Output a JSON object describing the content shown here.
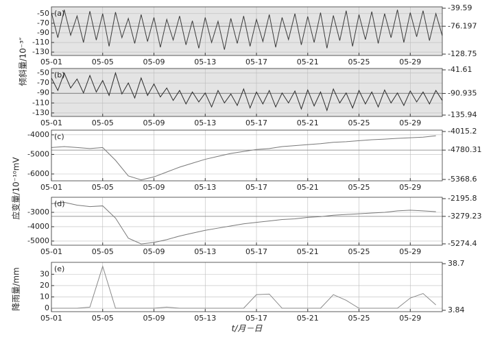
{
  "y_axis_titles": [
    "倾斜量/10⁻³″",
    "应变量/10⁻¹⁰mV",
    "降雨量/mm"
  ],
  "x_axis_title": "t/月－日",
  "chart_data": [
    {
      "type": "line",
      "label": "(a)",
      "background": "#e4e4e4",
      "grid": true,
      "color": "#3a3a3a",
      "x": [
        1,
        1.5,
        2,
        2.5,
        3,
        3.5,
        4,
        4.5,
        5,
        5.5,
        6,
        6.5,
        7,
        7.5,
        8,
        8.5,
        9,
        9.5,
        10,
        10.5,
        11,
        11.5,
        12,
        12.5,
        13,
        13.5,
        14,
        14.5,
        15,
        15.5,
        16,
        16.5,
        17,
        17.5,
        18,
        18.5,
        19,
        19.5,
        20,
        20.5,
        21,
        21.5,
        22,
        22.5,
        23,
        23.5,
        24,
        24.5,
        25,
        25.5,
        26,
        26.5,
        27,
        27.5,
        28,
        28.5,
        29,
        29.5,
        30,
        30.5,
        31,
        31.5
      ],
      "values": [
        -48,
        -100,
        -42,
        -95,
        -55,
        -110,
        -45,
        -105,
        -50,
        -118,
        -47,
        -100,
        -60,
        -112,
        -52,
        -108,
        -58,
        -120,
        -62,
        -105,
        -55,
        -115,
        -65,
        -122,
        -58,
        -110,
        -66,
        -125,
        -60,
        -112,
        -55,
        -118,
        -62,
        -108,
        -52,
        -120,
        -58,
        -104,
        -50,
        -115,
        -56,
        -110,
        -48,
        -122,
        -54,
        -106,
        -44,
        -118,
        -52,
        -104,
        -46,
        -112,
        -50,
        -100,
        -42,
        -110,
        -48,
        -98,
        -44,
        -106,
        -50,
        -96
      ],
      "xlim": [
        1,
        31.5
      ],
      "xticks": [
        {
          "value": 1,
          "label": "05-01"
        },
        {
          "value": 5,
          "label": "05-05"
        },
        {
          "value": 9,
          "label": "05-09"
        },
        {
          "value": 13,
          "label": "05-13"
        },
        {
          "value": 17,
          "label": "05-17"
        },
        {
          "value": 21,
          "label": "05-21"
        },
        {
          "value": 25,
          "label": "05-25"
        },
        {
          "value": 29,
          "label": "05-29"
        }
      ],
      "ylim": [
        -137,
        -36
      ],
      "yticks": [
        -50,
        -70,
        -90,
        -110,
        -130
      ],
      "right_labels": [
        -39.59,
        -76.197,
        -128.75
      ]
    },
    {
      "type": "line",
      "label": "(b)",
      "background": "#e4e4e4",
      "grid": true,
      "color": "#2a2a2a",
      "x": [
        1,
        1.5,
        2,
        2.5,
        3,
        3.5,
        4,
        4.5,
        5,
        5.5,
        6,
        6.5,
        7,
        7.5,
        8,
        8.5,
        9,
        9.5,
        10,
        10.5,
        11,
        11.5,
        12,
        12.5,
        13,
        13.5,
        14,
        14.5,
        15,
        15.5,
        16,
        16.5,
        17,
        17.5,
        18,
        18.5,
        19,
        19.5,
        20,
        20.5,
        21,
        21.5,
        22,
        22.5,
        23,
        23.5,
        24,
        24.5,
        25,
        25.5,
        26,
        26.5,
        27,
        27.5,
        28,
        28.5,
        29,
        29.5,
        30,
        30.5,
        31,
        31.5
      ],
      "values": [
        -60,
        -85,
        -50,
        -80,
        -62,
        -90,
        -55,
        -88,
        -65,
        -95,
        -50,
        -92,
        -70,
        -100,
        -60,
        -95,
        -72,
        -98,
        -80,
        -105,
        -85,
        -112,
        -88,
        -108,
        -90,
        -118,
        -85,
        -110,
        -92,
        -115,
        -82,
        -120,
        -88,
        -112,
        -85,
        -118,
        -90,
        -110,
        -86,
        -122,
        -84,
        -116,
        -88,
        -125,
        -82,
        -110,
        -90,
        -120,
        -85,
        -112,
        -88,
        -118,
        -84,
        -110,
        -90,
        -115,
        -86,
        -108,
        -88,
        -112,
        -85,
        -105
      ],
      "xlim": [
        1,
        31.5
      ],
      "xticks": [
        {
          "value": 1,
          "label": "05-01"
        },
        {
          "value": 5,
          "label": "05-05"
        },
        {
          "value": 9,
          "label": "05-09"
        },
        {
          "value": 13,
          "label": "05-13"
        },
        {
          "value": 17,
          "label": "05-17"
        },
        {
          "value": 21,
          "label": "05-21"
        },
        {
          "value": 25,
          "label": "05-25"
        },
        {
          "value": 29,
          "label": "05-29"
        }
      ],
      "ylim": [
        -137,
        -41
      ],
      "yticks": [
        -50,
        -70,
        -90,
        -110,
        -130
      ],
      "right_labels": [
        -41.61,
        -90.935,
        -135.94
      ]
    },
    {
      "type": "line",
      "label": "(c)",
      "background": "#ffffff",
      "grid": true,
      "color": "#777777",
      "x": [
        1,
        2,
        3,
        4,
        5,
        6,
        7,
        8,
        9,
        10,
        11,
        12,
        13,
        14,
        15,
        16,
        17,
        18,
        19,
        20,
        21,
        22,
        23,
        24,
        25,
        26,
        27,
        28,
        29,
        30,
        31
      ],
      "values": [
        -4650,
        -4600,
        -4650,
        -4700,
        -4650,
        -5300,
        -6100,
        -6300,
        -6150,
        -5900,
        -5650,
        -5450,
        -5250,
        -5100,
        -4950,
        -4850,
        -4750,
        -4700,
        -4600,
        -4550,
        -4500,
        -4450,
        -4380,
        -4350,
        -4300,
        -4250,
        -4220,
        -4180,
        -4150,
        -4120,
        -4050
      ],
      "xlim": [
        1,
        31.5
      ],
      "xticks": [
        {
          "value": 1,
          "label": "05-01"
        },
        {
          "value": 5,
          "label": "05-05"
        },
        {
          "value": 9,
          "label": "05-09"
        },
        {
          "value": 13,
          "label": "05-13"
        },
        {
          "value": 17,
          "label": "05-17"
        },
        {
          "value": 21,
          "label": "05-21"
        },
        {
          "value": 25,
          "label": "05-25"
        },
        {
          "value": 29,
          "label": "05-29"
        }
      ],
      "ylim": [
        -6350,
        -3760
      ],
      "yticks": [
        -4000,
        -5000,
        -6000
      ],
      "right_labels": [
        -4015.2,
        -4780.31,
        -5368.6
      ]
    },
    {
      "type": "line",
      "label": "(d)",
      "background": "#ffffff",
      "grid": true,
      "color": "#777777",
      "x": [
        1,
        2,
        3,
        4,
        5,
        6,
        7,
        8,
        9,
        10,
        11,
        12,
        13,
        14,
        15,
        16,
        17,
        18,
        19,
        20,
        21,
        22,
        23,
        24,
        25,
        26,
        27,
        28,
        29,
        30,
        31
      ],
      "values": [
        -2400,
        -2300,
        -2500,
        -2600,
        -2550,
        -3400,
        -4800,
        -5200,
        -5100,
        -4900,
        -4650,
        -4450,
        -4250,
        -4100,
        -3950,
        -3800,
        -3700,
        -3600,
        -3500,
        -3450,
        -3350,
        -3300,
        -3200,
        -3150,
        -3100,
        -3050,
        -3000,
        -2900,
        -2850,
        -2900,
        -2950
      ],
      "xlim": [
        1,
        31.5
      ],
      "xticks": [
        {
          "value": 1,
          "label": "05-01"
        },
        {
          "value": 5,
          "label": "05-05"
        },
        {
          "value": 9,
          "label": "05-09"
        },
        {
          "value": 13,
          "label": "05-13"
        },
        {
          "value": 17,
          "label": "05-17"
        },
        {
          "value": 21,
          "label": "05-21"
        },
        {
          "value": 25,
          "label": "05-25"
        },
        {
          "value": 29,
          "label": "05-29"
        }
      ],
      "ylim": [
        -5290,
        -1950
      ],
      "yticks": [
        -3000,
        -4000,
        -5000
      ],
      "right_labels": [
        -2195.8,
        -3279.23,
        -5274.4
      ]
    },
    {
      "type": "line",
      "label": "(e)",
      "background": "#ffffff",
      "grid": true,
      "color": "#888888",
      "x": [
        1,
        2,
        3,
        4,
        5,
        6,
        7,
        8,
        9,
        10,
        11,
        12,
        13,
        14,
        15,
        16,
        17,
        18,
        19,
        20,
        21,
        22,
        23,
        24,
        25,
        26,
        27,
        28,
        29,
        30,
        31
      ],
      "values": [
        0,
        0,
        0,
        1,
        37,
        0,
        0,
        0,
        0,
        1,
        0,
        0,
        0,
        0,
        0,
        0,
        12,
        12.5,
        0,
        0,
        0,
        0,
        12,
        7,
        0,
        0,
        0,
        0,
        9,
        13,
        3
      ],
      "xlim": [
        1,
        31.5
      ],
      "xticks": [
        {
          "value": 1,
          "label": "05-01"
        },
        {
          "value": 5,
          "label": "05-05"
        },
        {
          "value": 9,
          "label": "05-09"
        },
        {
          "value": 13,
          "label": "05-13"
        },
        {
          "value": 17,
          "label": "05-17"
        },
        {
          "value": 21,
          "label": "05-21"
        },
        {
          "value": 25,
          "label": "05-25"
        },
        {
          "value": 29,
          "label": "05-29"
        }
      ],
      "ylim": [
        -3,
        40.5
      ],
      "yticks": [
        0,
        10,
        20,
        30
      ],
      "right_labels": [
        38.7,
        3.84
      ]
    }
  ]
}
